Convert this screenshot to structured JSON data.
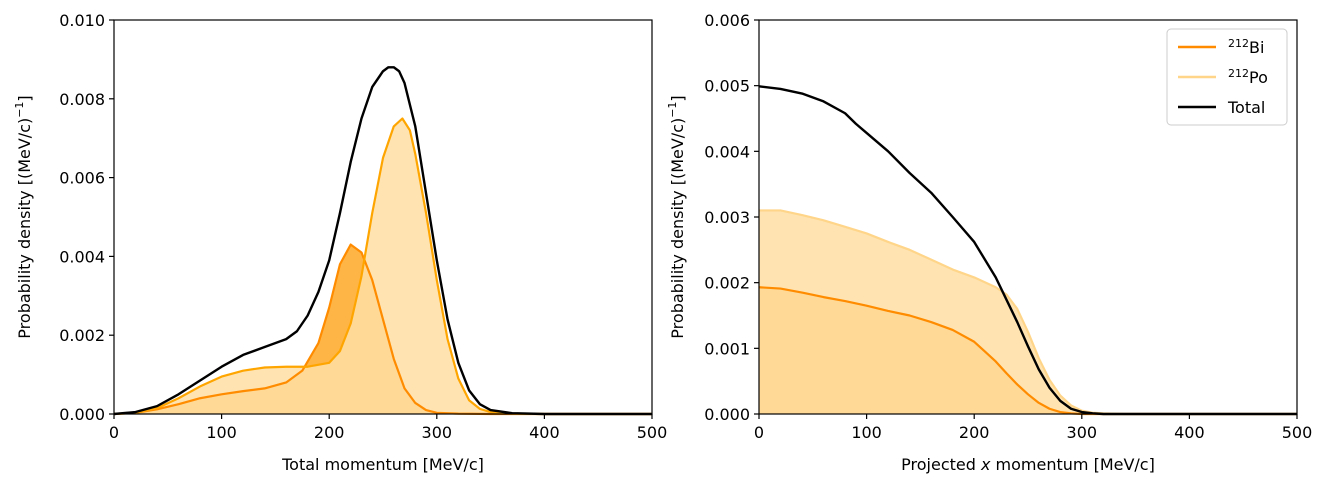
{
  "chart_data": [
    {
      "type": "area",
      "xlabel": "Total momentum [MeV/c]",
      "ylabel": "Probability density [(MeV/c)",
      "ylabel_exp": "−1",
      "ylabel_close": "]",
      "xlim": [
        0,
        500
      ],
      "ylim": [
        0,
        0.01
      ],
      "xticks": [
        "0",
        "100",
        "200",
        "300",
        "400",
        "500"
      ],
      "yticks": [
        "0.000",
        "0.002",
        "0.004",
        "0.006",
        "0.008",
        "0.010"
      ],
      "series": [
        {
          "name": "212Bi",
          "color": "#FF8C00",
          "fill": "#FFA826",
          "x": [
            0,
            20,
            40,
            60,
            80,
            100,
            120,
            140,
            160,
            175,
            190,
            200,
            210,
            220,
            230,
            240,
            250,
            260,
            270,
            280,
            290,
            300,
            320,
            350,
            500
          ],
          "y": [
            0,
            3e-05,
            0.00012,
            0.00025,
            0.0004,
            0.0005,
            0.00058,
            0.00065,
            0.0008,
            0.0011,
            0.0018,
            0.0027,
            0.0038,
            0.0043,
            0.0041,
            0.0034,
            0.0024,
            0.0014,
            0.00065,
            0.00028,
            0.0001,
            3e-05,
            1e-05,
            0,
            0
          ]
        },
        {
          "name": "212Po",
          "color": "#FFA500",
          "fill": "#FFDFA3",
          "x": [
            0,
            20,
            40,
            60,
            80,
            100,
            120,
            140,
            160,
            180,
            200,
            210,
            220,
            230,
            240,
            250,
            260,
            268,
            275,
            280,
            290,
            300,
            310,
            320,
            330,
            340,
            350,
            370,
            400,
            500
          ],
          "y": [
            0,
            3e-05,
            0.00015,
            0.0004,
            0.0007,
            0.00095,
            0.0011,
            0.00118,
            0.0012,
            0.0012,
            0.0013,
            0.0016,
            0.0023,
            0.0035,
            0.0051,
            0.0065,
            0.0073,
            0.0075,
            0.0072,
            0.0066,
            0.0051,
            0.0034,
            0.0019,
            0.0009,
            0.00035,
            0.00013,
            5e-05,
            1e-05,
            0,
            0
          ]
        },
        {
          "name": "Total",
          "color": "#000000",
          "x": [
            0,
            20,
            40,
            60,
            80,
            100,
            120,
            140,
            160,
            170,
            180,
            190,
            200,
            210,
            220,
            230,
            240,
            250,
            255,
            260,
            265,
            270,
            280,
            290,
            300,
            310,
            320,
            330,
            340,
            350,
            370,
            400,
            500
          ],
          "y": [
            0,
            5e-05,
            0.0002,
            0.0005,
            0.00085,
            0.0012,
            0.0015,
            0.0017,
            0.0019,
            0.0021,
            0.0025,
            0.0031,
            0.0039,
            0.0051,
            0.0064,
            0.0075,
            0.0083,
            0.0087,
            0.0088,
            0.0088,
            0.0087,
            0.0084,
            0.0073,
            0.0056,
            0.0039,
            0.0024,
            0.0013,
            0.0006,
            0.00025,
            0.0001,
            2e-05,
            0,
            0
          ]
        }
      ]
    },
    {
      "type": "area",
      "xlabel_prefix": "Projected ",
      "xlabel_var": "x",
      "xlabel_suffix": " momentum [MeV/c]",
      "ylabel": "Probability density [(MeV/c)",
      "ylabel_exp": "−1",
      "ylabel_close": "]",
      "xlim": [
        0,
        500
      ],
      "ylim": [
        0,
        0.006
      ],
      "xticks": [
        "0",
        "100",
        "200",
        "300",
        "400",
        "500"
      ],
      "yticks": [
        "0.000",
        "0.001",
        "0.002",
        "0.003",
        "0.004",
        "0.005",
        "0.006"
      ],
      "legend": {
        "position": "top-right",
        "entries": [
          {
            "sup": "212",
            "label": "Bi",
            "color": "#FF8C00"
          },
          {
            "sup": "212",
            "label": "Po",
            "color": "#FFD58A"
          },
          {
            "sup": "",
            "label": "Total",
            "color": "#000000"
          }
        ]
      },
      "series": [
        {
          "name": "212Bi",
          "color": "#FF8C00",
          "fill": "#FFA826",
          "x": [
            0,
            20,
            40,
            60,
            80,
            100,
            120,
            140,
            160,
            180,
            200,
            210,
            220,
            230,
            240,
            250,
            260,
            270,
            280,
            290,
            300,
            320,
            500
          ],
          "y": [
            0.00193,
            0.00191,
            0.00185,
            0.00178,
            0.00172,
            0.00165,
            0.00157,
            0.0015,
            0.0014,
            0.00128,
            0.0011,
            0.00095,
            0.0008,
            0.00062,
            0.00045,
            0.0003,
            0.00017,
            8e-05,
            3e-05,
            1e-05,
            0,
            0,
            0
          ]
        },
        {
          "name": "212Po",
          "color": "#FFD58A",
          "fill": "#FFDFA3",
          "x": [
            0,
            20,
            40,
            60,
            80,
            100,
            120,
            140,
            160,
            180,
            200,
            220,
            230,
            240,
            250,
            260,
            270,
            280,
            290,
            300,
            310,
            320,
            340,
            500
          ],
          "y": [
            0.0031,
            0.0031,
            0.00303,
            0.00295,
            0.00285,
            0.00275,
            0.00262,
            0.0025,
            0.00235,
            0.0022,
            0.00208,
            0.00193,
            0.00182,
            0.0016,
            0.00125,
            0.00085,
            0.00052,
            0.00028,
            0.00013,
            5e-05,
            2e-05,
            1e-05,
            0,
            0
          ]
        },
        {
          "name": "Total",
          "color": "#000000",
          "x": [
            0,
            20,
            40,
            60,
            80,
            90,
            100,
            120,
            140,
            160,
            180,
            200,
            220,
            240,
            250,
            260,
            270,
            280,
            290,
            300,
            310,
            320,
            340,
            500
          ],
          "y": [
            0.00499,
            0.00495,
            0.00488,
            0.00476,
            0.00458,
            0.00442,
            0.00428,
            0.004,
            0.00367,
            0.00337,
            0.003,
            0.00262,
            0.00208,
            0.0014,
            0.00103,
            0.00068,
            0.0004,
            0.0002,
            8e-05,
            3e-05,
            1e-05,
            0,
            0,
            0
          ]
        }
      ]
    }
  ]
}
